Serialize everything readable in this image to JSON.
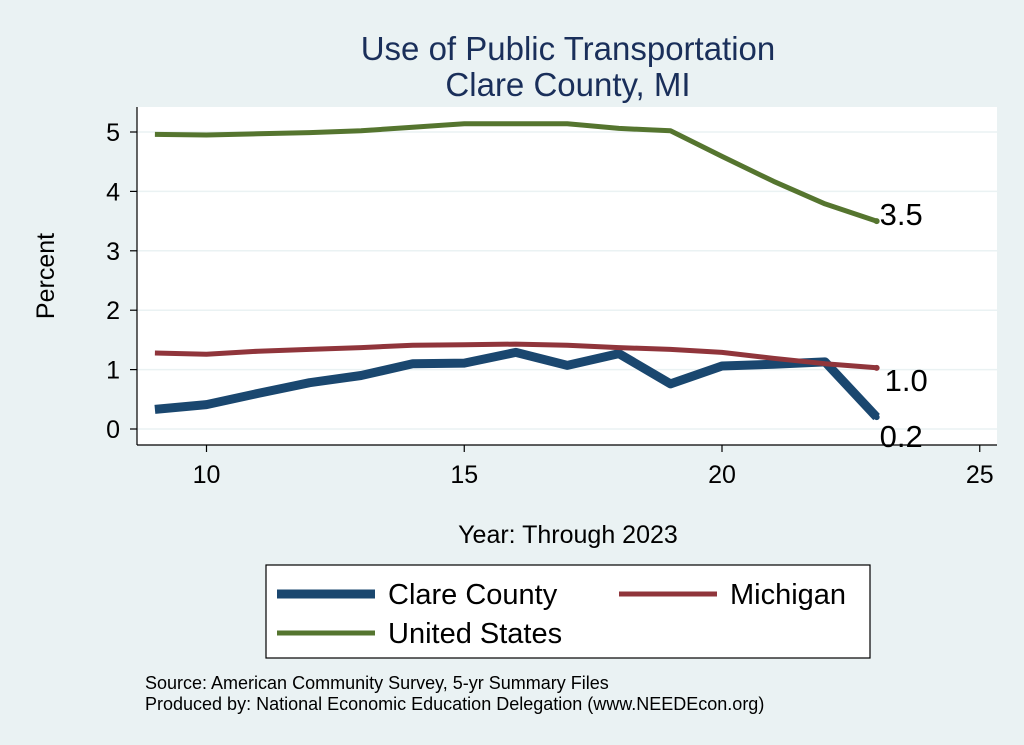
{
  "chart_data": {
    "type": "line",
    "title": "Use of Public Transportation",
    "subtitle": "Clare County, MI",
    "xlabel": "Year: Through 2023",
    "ylabel": "Percent",
    "xlim": [
      9,
      25
    ],
    "ylim": [
      0,
      5
    ],
    "xticks": [
      10,
      15,
      20,
      25
    ],
    "yticks": [
      0,
      1,
      2,
      3,
      4,
      5
    ],
    "grid": true,
    "legend_position": "bottom",
    "series": [
      {
        "name": "Clare County",
        "color": "#1a476f",
        "x": [
          9,
          10,
          11,
          12,
          13,
          14,
          15,
          16,
          17,
          18,
          19,
          20,
          21,
          22,
          23
        ],
        "values": [
          0.33,
          0.41,
          0.6,
          0.78,
          0.9,
          1.1,
          1.11,
          1.29,
          1.07,
          1.27,
          0.76,
          1.06,
          1.09,
          1.13,
          0.2
        ],
        "end_label": "0.2"
      },
      {
        "name": "Michigan",
        "color": "#90353b",
        "x": [
          9,
          10,
          11,
          12,
          13,
          14,
          15,
          16,
          17,
          18,
          19,
          20,
          21,
          22,
          23
        ],
        "values": [
          1.28,
          1.26,
          1.31,
          1.34,
          1.37,
          1.41,
          1.42,
          1.43,
          1.41,
          1.37,
          1.34,
          1.29,
          1.19,
          1.1,
          1.03
        ],
        "end_label": "1.0"
      },
      {
        "name": "United States",
        "color": "#55752f",
        "x": [
          9,
          10,
          11,
          12,
          13,
          14,
          15,
          16,
          17,
          18,
          19,
          20,
          21,
          22,
          23
        ],
        "values": [
          4.96,
          4.95,
          4.97,
          4.99,
          5.02,
          5.08,
          5.14,
          5.14,
          5.14,
          5.06,
          5.02,
          4.59,
          4.17,
          3.79,
          3.5
        ],
        "end_label": "3.5"
      }
    ],
    "notes": [
      "Source: American Community Survey, 5-yr Summary Files",
      "Produced by: National Economic Education Delegation (www.NEEDEcon.org)"
    ]
  }
}
